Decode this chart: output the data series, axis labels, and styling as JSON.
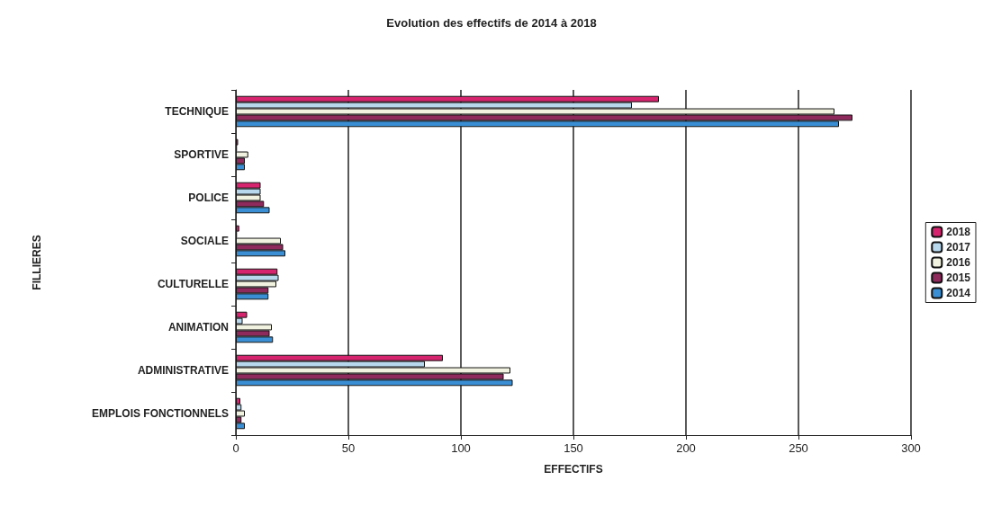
{
  "chart_data": {
    "type": "bar",
    "orientation": "horizontal",
    "title": "Evolution des effectifs de 2014 à 2018",
    "xlabel": "EFFECTIFS",
    "ylabel": "FILLIERES",
    "categories": [
      "TECHNIQUE",
      "SPORTIVE",
      "POLICE",
      "SOCIALE",
      "CULTURELLE",
      "ANIMATION",
      "ADMINISTRATIVE",
      "EMPLOIS FONCTIONNELS"
    ],
    "series": [
      {
        "name": "2018",
        "color": "#d6246e",
        "values": [
          188,
          1,
          11,
          1.5,
          18.5,
          5,
          92,
          2
        ]
      },
      {
        "name": "2017",
        "color": "#b8d8ee",
        "values": [
          176,
          0.5,
          11,
          0.5,
          19,
          3,
          84,
          2.5
        ]
      },
      {
        "name": "2016",
        "color": "#f2f2e0",
        "values": [
          266,
          5.5,
          11,
          20,
          18,
          16,
          122,
          4
        ]
      },
      {
        "name": "2015",
        "color": "#8e2a5c",
        "values": [
          274,
          4,
          12.5,
          21,
          14.5,
          15,
          119,
          2.5
        ]
      },
      {
        "name": "2014",
        "color": "#3a8fd4",
        "values": [
          268,
          4,
          15,
          22,
          14.5,
          16.5,
          123,
          4
        ]
      }
    ],
    "xlim": [
      0,
      300
    ],
    "xticks": [
      0,
      50,
      100,
      150,
      200,
      250,
      300
    ],
    "grid": "x",
    "legend": "right"
  }
}
